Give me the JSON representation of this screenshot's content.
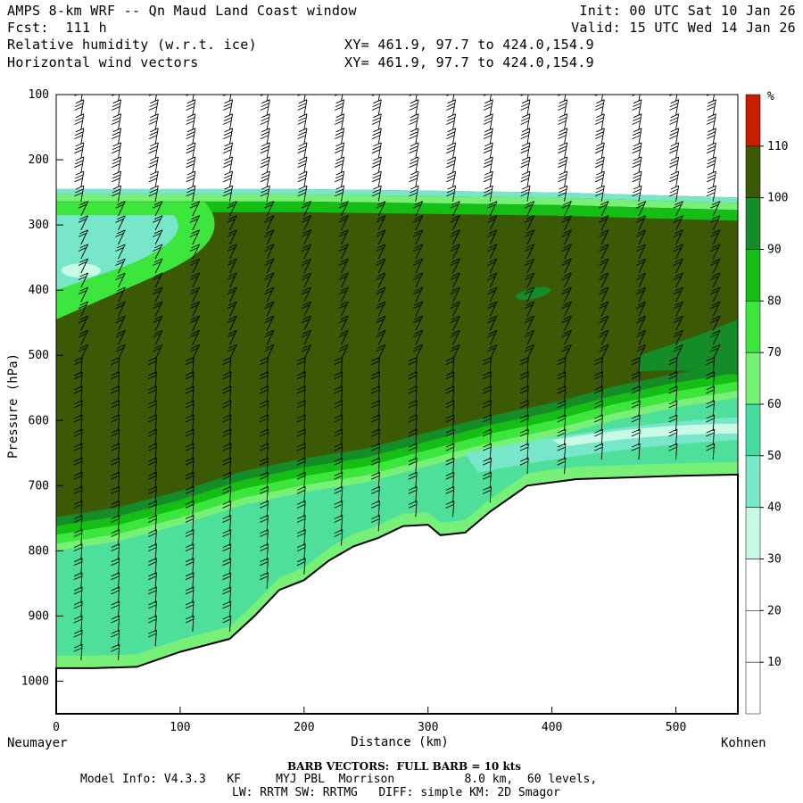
{
  "header": {
    "title": "AMPS 8-km WRF -- Qn Maud Land Coast window",
    "fcst": "Fcst:  111 h",
    "field1": "Relative humidity (w.r.t. ice)",
    "field2": "Horizontal wind vectors",
    "xy1": "XY= 461.9, 97.7 to 424.0,154.9",
    "xy2": "XY= 461.9, 97.7 to 424.0,154.9",
    "init": "Init: 00 UTC Sat 10 Jan 26",
    "valid": "Valid: 15 UTC Wed 14 Jan 26"
  },
  "footer": {
    "barb": "BARB VECTORS:  FULL BARB = 10 kts",
    "model_line1": "Model Info: V4.3.3   KF     MYJ PBL  Morrison          8.0 km,  60 levels,",
    "model_line2": "LW: RRTM SW: RRTMG   DIFF: simple KM: 2D Smagor"
  },
  "chart_data": {
    "type": "heatmap",
    "title": "Relative humidity (w.r.t. ice)",
    "xlabel": "Distance (km)",
    "ylabel": "Pressure (hPa)",
    "xlim": [
      0,
      550
    ],
    "ylim": [
      1050,
      100
    ],
    "x_ticks": [
      0,
      100,
      200,
      300,
      400,
      500
    ],
    "y_ticks": [
      100,
      200,
      300,
      400,
      500,
      600,
      700,
      800,
      900,
      1000
    ],
    "x_endpoints": {
      "left": "Neumayer",
      "right": "Kohnen"
    },
    "colorbar": {
      "unit": "%",
      "levels": [
        10,
        20,
        30,
        40,
        50,
        60,
        70,
        80,
        90,
        100,
        110
      ],
      "colors": [
        "#ffffff",
        "#ffffff",
        "#ffffff",
        "#c8fae6",
        "#78e6c8",
        "#46dca0",
        "#78f078",
        "#3ce63c",
        "#14be14",
        "#148c28",
        "#3c5a05",
        "#c81e00"
      ]
    },
    "terrain_surface_hpa": [
      {
        "x": 0,
        "p": 980
      },
      {
        "x": 30,
        "p": 980
      },
      {
        "x": 65,
        "p": 978
      },
      {
        "x": 100,
        "p": 955
      },
      {
        "x": 140,
        "p": 935
      },
      {
        "x": 160,
        "p": 900
      },
      {
        "x": 180,
        "p": 860
      },
      {
        "x": 200,
        "p": 845
      },
      {
        "x": 220,
        "p": 815
      },
      {
        "x": 240,
        "p": 793
      },
      {
        "x": 260,
        "p": 780
      },
      {
        "x": 280,
        "p": 762
      },
      {
        "x": 300,
        "p": 760
      },
      {
        "x": 310,
        "p": 776
      },
      {
        "x": 330,
        "p": 772
      },
      {
        "x": 350,
        "p": 740
      },
      {
        "x": 380,
        "p": 700
      },
      {
        "x": 420,
        "p": 690
      },
      {
        "x": 500,
        "p": 685
      },
      {
        "x": 550,
        "p": 683
      }
    ],
    "moist_layer_top_hpa": [
      {
        "x": 0,
        "p": 245
      },
      {
        "x": 200,
        "p": 245
      },
      {
        "x": 400,
        "p": 250
      },
      {
        "x": 550,
        "p": 258
      }
    ],
    "moist_layer_base_hpa": [
      {
        "x": 0,
        "p": 770
      },
      {
        "x": 50,
        "p": 755
      },
      {
        "x": 100,
        "p": 730
      },
      {
        "x": 150,
        "p": 700
      },
      {
        "x": 200,
        "p": 680
      },
      {
        "x": 250,
        "p": 665
      },
      {
        "x": 300,
        "p": 640
      },
      {
        "x": 350,
        "p": 615
      },
      {
        "x": 400,
        "p": 595
      },
      {
        "x": 450,
        "p": 570
      },
      {
        "x": 500,
        "p": 550
      },
      {
        "x": 550,
        "p": 535
      }
    ],
    "wind_barb_columns_km": [
      20,
      50,
      80,
      110,
      140,
      170,
      200,
      230,
      260,
      290,
      320,
      350,
      380,
      410,
      440,
      470,
      500,
      530
    ]
  }
}
